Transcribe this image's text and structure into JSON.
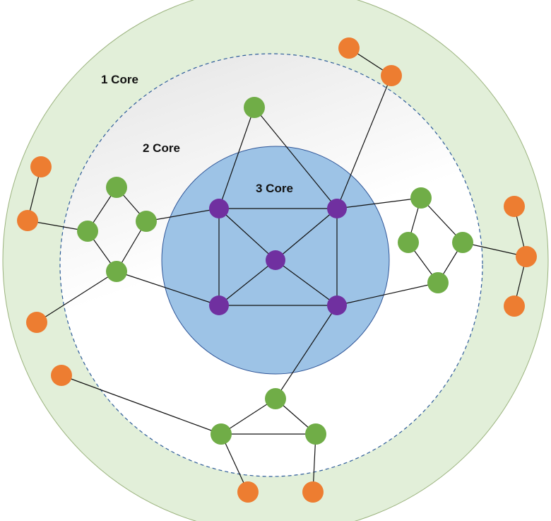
{
  "labels": {
    "core1": "1 Core",
    "core2": "2 Core",
    "core3": "3 Core"
  },
  "colors": {
    "core1_fill": "#e2efd9",
    "core1_stroke": "#9bb37e",
    "core2_fill_top": "#e3e3e3",
    "core2_fill_bottom": "#ffffff",
    "core2_stroke": "#2e5c9a",
    "core3_fill": "#9dc3e6",
    "core3_stroke": "#2f5597",
    "node_3core": "#7030a0",
    "node_2core": "#70ad47",
    "node_1core": "#ed7d31",
    "edge": "#111111"
  }
}
